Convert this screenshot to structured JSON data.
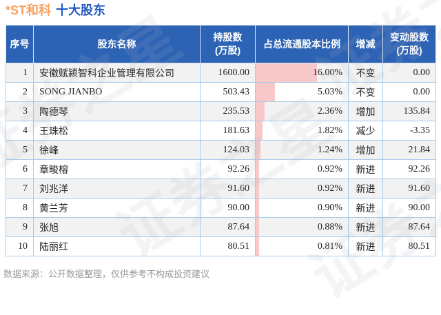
{
  "title": {
    "stock": "*ST和科",
    "section": "十大股东"
  },
  "colors": {
    "header_bg": "#2d63b5",
    "title_stock": "#faa05d",
    "title_section": "#2459c4",
    "increase": "#e63232",
    "decrease": "#2fab50",
    "neutral": "#222222",
    "bar_fill": "#f9c9c9",
    "row_alt_bg": "#f2f2f2",
    "grid_line": "#a9cbe9",
    "footer_text": "#999999",
    "watermark": "#aab4c3"
  },
  "table": {
    "headers": [
      "序号",
      "股东名称",
      "持股数\n(万股)",
      "占总流通股本比例",
      "增减",
      "变动股数\n(万股)"
    ],
    "rows": [
      {
        "no": "1",
        "name": "安徽赋颍智科企业管理有限公司",
        "shares": "1600.00",
        "pct": "16.00%",
        "pct_value": 16.0,
        "change": "不变",
        "change_shares": "0.00",
        "trend": "neutral"
      },
      {
        "no": "2",
        "name": "SONG JIANBO",
        "shares": "503.43",
        "pct": "5.03%",
        "pct_value": 5.03,
        "change": "不变",
        "change_shares": "0.00",
        "trend": "neutral"
      },
      {
        "no": "3",
        "name": "陶德琴",
        "shares": "235.53",
        "pct": "2.36%",
        "pct_value": 2.36,
        "change": "增加",
        "change_shares": "135.84",
        "trend": "increase"
      },
      {
        "no": "4",
        "name": "王珠松",
        "shares": "181.63",
        "pct": "1.82%",
        "pct_value": 1.82,
        "change": "减少",
        "change_shares": "-3.35",
        "trend": "decrease"
      },
      {
        "no": "5",
        "name": "徐峰",
        "shares": "124.03",
        "pct": "1.24%",
        "pct_value": 1.24,
        "change": "增加",
        "change_shares": "21.84",
        "trend": "increase"
      },
      {
        "no": "6",
        "name": "章畯榕",
        "shares": "92.26",
        "pct": "0.92%",
        "pct_value": 0.92,
        "change": "新进",
        "change_shares": "92.26",
        "trend": "increase"
      },
      {
        "no": "7",
        "name": "刘兆洋",
        "shares": "91.60",
        "pct": "0.92%",
        "pct_value": 0.92,
        "change": "新进",
        "change_shares": "91.60",
        "trend": "increase"
      },
      {
        "no": "8",
        "name": "黄兰芳",
        "shares": "90.00",
        "pct": "0.90%",
        "pct_value": 0.9,
        "change": "新进",
        "change_shares": "90.00",
        "trend": "increase"
      },
      {
        "no": "9",
        "name": "张旭",
        "shares": "87.64",
        "pct": "0.88%",
        "pct_value": 0.88,
        "change": "新进",
        "change_shares": "87.64",
        "trend": "increase"
      },
      {
        "no": "10",
        "name": "陆丽红",
        "shares": "80.51",
        "pct": "0.81%",
        "pct_value": 0.81,
        "change": "新进",
        "change_shares": "80.51",
        "trend": "increase"
      }
    ]
  },
  "footer": {
    "source_note": "数据来源：公开数据整理，仅供参考不构成投资建议"
  },
  "watermark": {
    "text": "证券之星"
  },
  "chart_data": {
    "type": "table",
    "title": "*ST和科 十大股东",
    "columns": [
      "序号",
      "股东名称",
      "持股数(万股)",
      "占总流通股本比例",
      "增减",
      "变动股数(万股)"
    ],
    "rows": [
      [
        1,
        "安徽赋颍智科企业管理有限公司",
        1600.0,
        "16.00%",
        "不变",
        0.0
      ],
      [
        2,
        "SONG JIANBO",
        503.43,
        "5.03%",
        "不变",
        0.0
      ],
      [
        3,
        "陶德琴",
        235.53,
        "2.36%",
        "增加",
        135.84
      ],
      [
        4,
        "王珠松",
        181.63,
        "1.82%",
        "减少",
        -3.35
      ],
      [
        5,
        "徐峰",
        124.03,
        "1.24%",
        "增加",
        21.84
      ],
      [
        6,
        "章畯榕",
        92.26,
        "0.92%",
        "新进",
        92.26
      ],
      [
        7,
        "刘兆洋",
        91.6,
        "0.92%",
        "新进",
        91.6
      ],
      [
        8,
        "黄兰芳",
        90.0,
        "0.90%",
        "新进",
        90.0
      ],
      [
        9,
        "张旭",
        87.64,
        "0.88%",
        "新进",
        87.64
      ],
      [
        10,
        "陆丽红",
        80.51,
        "0.81%",
        "新进",
        80.51
      ]
    ],
    "bar_overlay": {
      "column": "占总流通股本比例",
      "max_percent": 16.0,
      "bar_color": "#f9c9c9"
    },
    "source_note": "数据来源：公开数据整理，仅供参考不构成投资建议"
  }
}
